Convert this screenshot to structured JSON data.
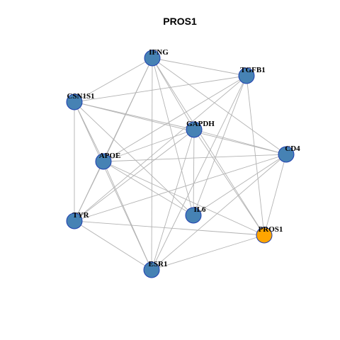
{
  "title": "PROS1",
  "nodes": [
    {
      "label": "IFNG",
      "color": "#4682b4"
    },
    {
      "label": "TGFB1",
      "color": "#4682b4"
    },
    {
      "label": "CSN1S1",
      "color": "#4682b4"
    },
    {
      "label": "GAPDH",
      "color": "#4682b4"
    },
    {
      "label": "CD4",
      "color": "#4682b4"
    },
    {
      "label": "APOE",
      "color": "#4682b4"
    },
    {
      "label": "TYR",
      "color": "#4682b4"
    },
    {
      "label": "IL6",
      "color": "#4682b4"
    },
    {
      "label": "PROS1",
      "color": "#ffa500"
    },
    {
      "label": "ESR1",
      "color": "#4682b4"
    }
  ]
}
